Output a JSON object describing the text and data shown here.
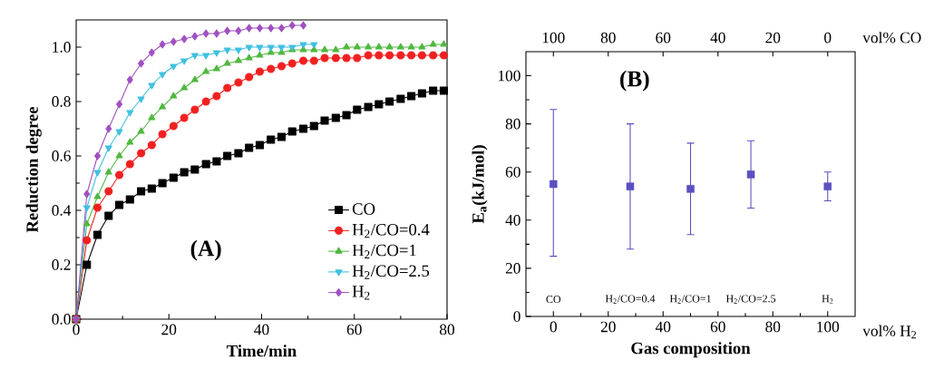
{
  "chart_data": [
    {
      "type": "line",
      "xlabel": "Time/min",
      "ylabel": "Reduction degree",
      "annotations": [
        "(A)"
      ],
      "x": [
        0,
        2.3,
        4.6,
        7,
        9.3,
        11.6,
        14,
        16.3,
        18.6,
        21,
        23.3,
        25.6,
        28,
        30.3,
        32.6,
        35,
        37.3,
        39.6,
        42,
        44.3,
        46.6,
        49,
        51.3,
        53.6,
        56,
        58.3,
        60.6,
        63,
        65.3,
        67.6,
        70,
        72.3,
        74.6,
        77,
        79.3
      ],
      "series": [
        {
          "name": "CO",
          "color": "#000000",
          "marker": "square",
          "values": [
            0,
            0.2,
            0.31,
            0.38,
            0.42,
            0.44,
            0.47,
            0.48,
            0.5,
            0.52,
            0.54,
            0.55,
            0.57,
            0.58,
            0.6,
            0.61,
            0.63,
            0.64,
            0.66,
            0.67,
            0.69,
            0.7,
            0.71,
            0.73,
            0.74,
            0.75,
            0.77,
            0.78,
            0.79,
            0.8,
            0.81,
            0.82,
            0.83,
            0.84,
            0.84
          ]
        },
        {
          "name": "H$_{2}$/CO=0.4",
          "color": "#f02020",
          "marker": "circle",
          "values": [
            0,
            0.29,
            0.41,
            0.47,
            0.53,
            0.57,
            0.61,
            0.64,
            0.68,
            0.71,
            0.74,
            0.77,
            0.8,
            0.82,
            0.85,
            0.87,
            0.89,
            0.91,
            0.92,
            0.93,
            0.94,
            0.95,
            0.95,
            0.96,
            0.96,
            0.96,
            0.96,
            0.97,
            0.97,
            0.97,
            0.97,
            0.97,
            0.97,
            0.97,
            0.97
          ]
        },
        {
          "name": "H$_{2}$/CO=1",
          "color": "#50b840",
          "marker": "triangle",
          "values": [
            0,
            0.35,
            0.45,
            0.54,
            0.6,
            0.65,
            0.69,
            0.74,
            0.78,
            0.82,
            0.85,
            0.88,
            0.91,
            0.92,
            0.94,
            0.95,
            0.96,
            0.97,
            0.98,
            0.98,
            0.99,
            0.99,
            0.99,
            0.99,
            0.99,
            1.0,
            1.0,
            1.0,
            1.0,
            1.0,
            1.0,
            1.0,
            1.0,
            1.01,
            1.01
          ]
        },
        {
          "name": "H$_{2}$/CO=2.5",
          "color": "#40c0e0",
          "marker": "triangle down",
          "x": [
            0,
            2.3,
            4.6,
            7,
            9.3,
            11.6,
            14,
            16.3,
            18.6,
            21,
            23.3,
            25.6,
            28,
            30.3,
            32.6,
            35,
            37.3,
            39.6,
            42,
            44.3,
            46.6,
            49,
            51.3
          ],
          "values": [
            0,
            0.41,
            0.54,
            0.63,
            0.69,
            0.76,
            0.81,
            0.86,
            0.9,
            0.93,
            0.95,
            0.97,
            0.97,
            0.98,
            0.99,
            0.99,
            1.0,
            1.0,
            1.0,
            1.0,
            1.0,
            1.01,
            1.01
          ]
        },
        {
          "name": "H$_{2}$",
          "color": "#a050c0",
          "marker": "diamond",
          "x": [
            0,
            2.3,
            4.6,
            7,
            9.3,
            11.6,
            14,
            16.3,
            18.6,
            21,
            23.3,
            25.6,
            28,
            30.3,
            32.6,
            35,
            37.3,
            39.6,
            42,
            44.3,
            46.6,
            49
          ],
          "values": [
            0,
            0.46,
            0.6,
            0.7,
            0.79,
            0.88,
            0.94,
            0.98,
            1.01,
            1.02,
            1.03,
            1.04,
            1.05,
            1.05,
            1.06,
            1.06,
            1.07,
            1.07,
            1.07,
            1.07,
            1.08,
            1.08
          ]
        }
      ],
      "xlim": [
        0,
        80
      ],
      "xticks": [
        0,
        20,
        40,
        60,
        80
      ],
      "ylim": [
        0,
        1.1
      ],
      "yticks": [
        {
          "value": 0,
          "label": "0.0"
        },
        0.2,
        0.4,
        0.6,
        0.8,
        {
          "value": 1,
          "label": "1.0"
        }
      ],
      "legend": "bottom right",
      "grid": false
    },
    {
      "type": "scatter",
      "xlabel": "Gas composition",
      "ylabel": "E$_{a}$(kJ/mol)",
      "x2label": "vol% CO",
      "annotations": [
        "(B)",
        "vol% H$_{2}$",
        "CO",
        "H$_{2}$/CO=0.4",
        "H$_{2}$/CO=1",
        "H$_{2}$/CO=2.5",
        "H$_{2}$"
      ],
      "x": [
        0,
        28,
        50,
        72,
        100
      ],
      "series": [
        {
          "color": "#5a50c0",
          "marker": "square",
          "values": [
            55,
            54,
            53,
            59,
            54
          ],
          "errors": [
            [
              25,
              86
            ],
            [
              28,
              80
            ],
            [
              34,
              72
            ],
            [
              45,
              73
            ],
            [
              48,
              60
            ]
          ]
        }
      ],
      "xlim": [
        -10,
        110
      ],
      "xticks": [
        0,
        20,
        40,
        60,
        80,
        100
      ],
      "x2lim": [
        110,
        -10
      ],
      "x2ticks": [
        100,
        80,
        60,
        40,
        20,
        0
      ],
      "ylim": [
        0,
        110
      ],
      "yticks": [
        0,
        20,
        40,
        60,
        80,
        100
      ],
      "grid": false
    }
  ]
}
